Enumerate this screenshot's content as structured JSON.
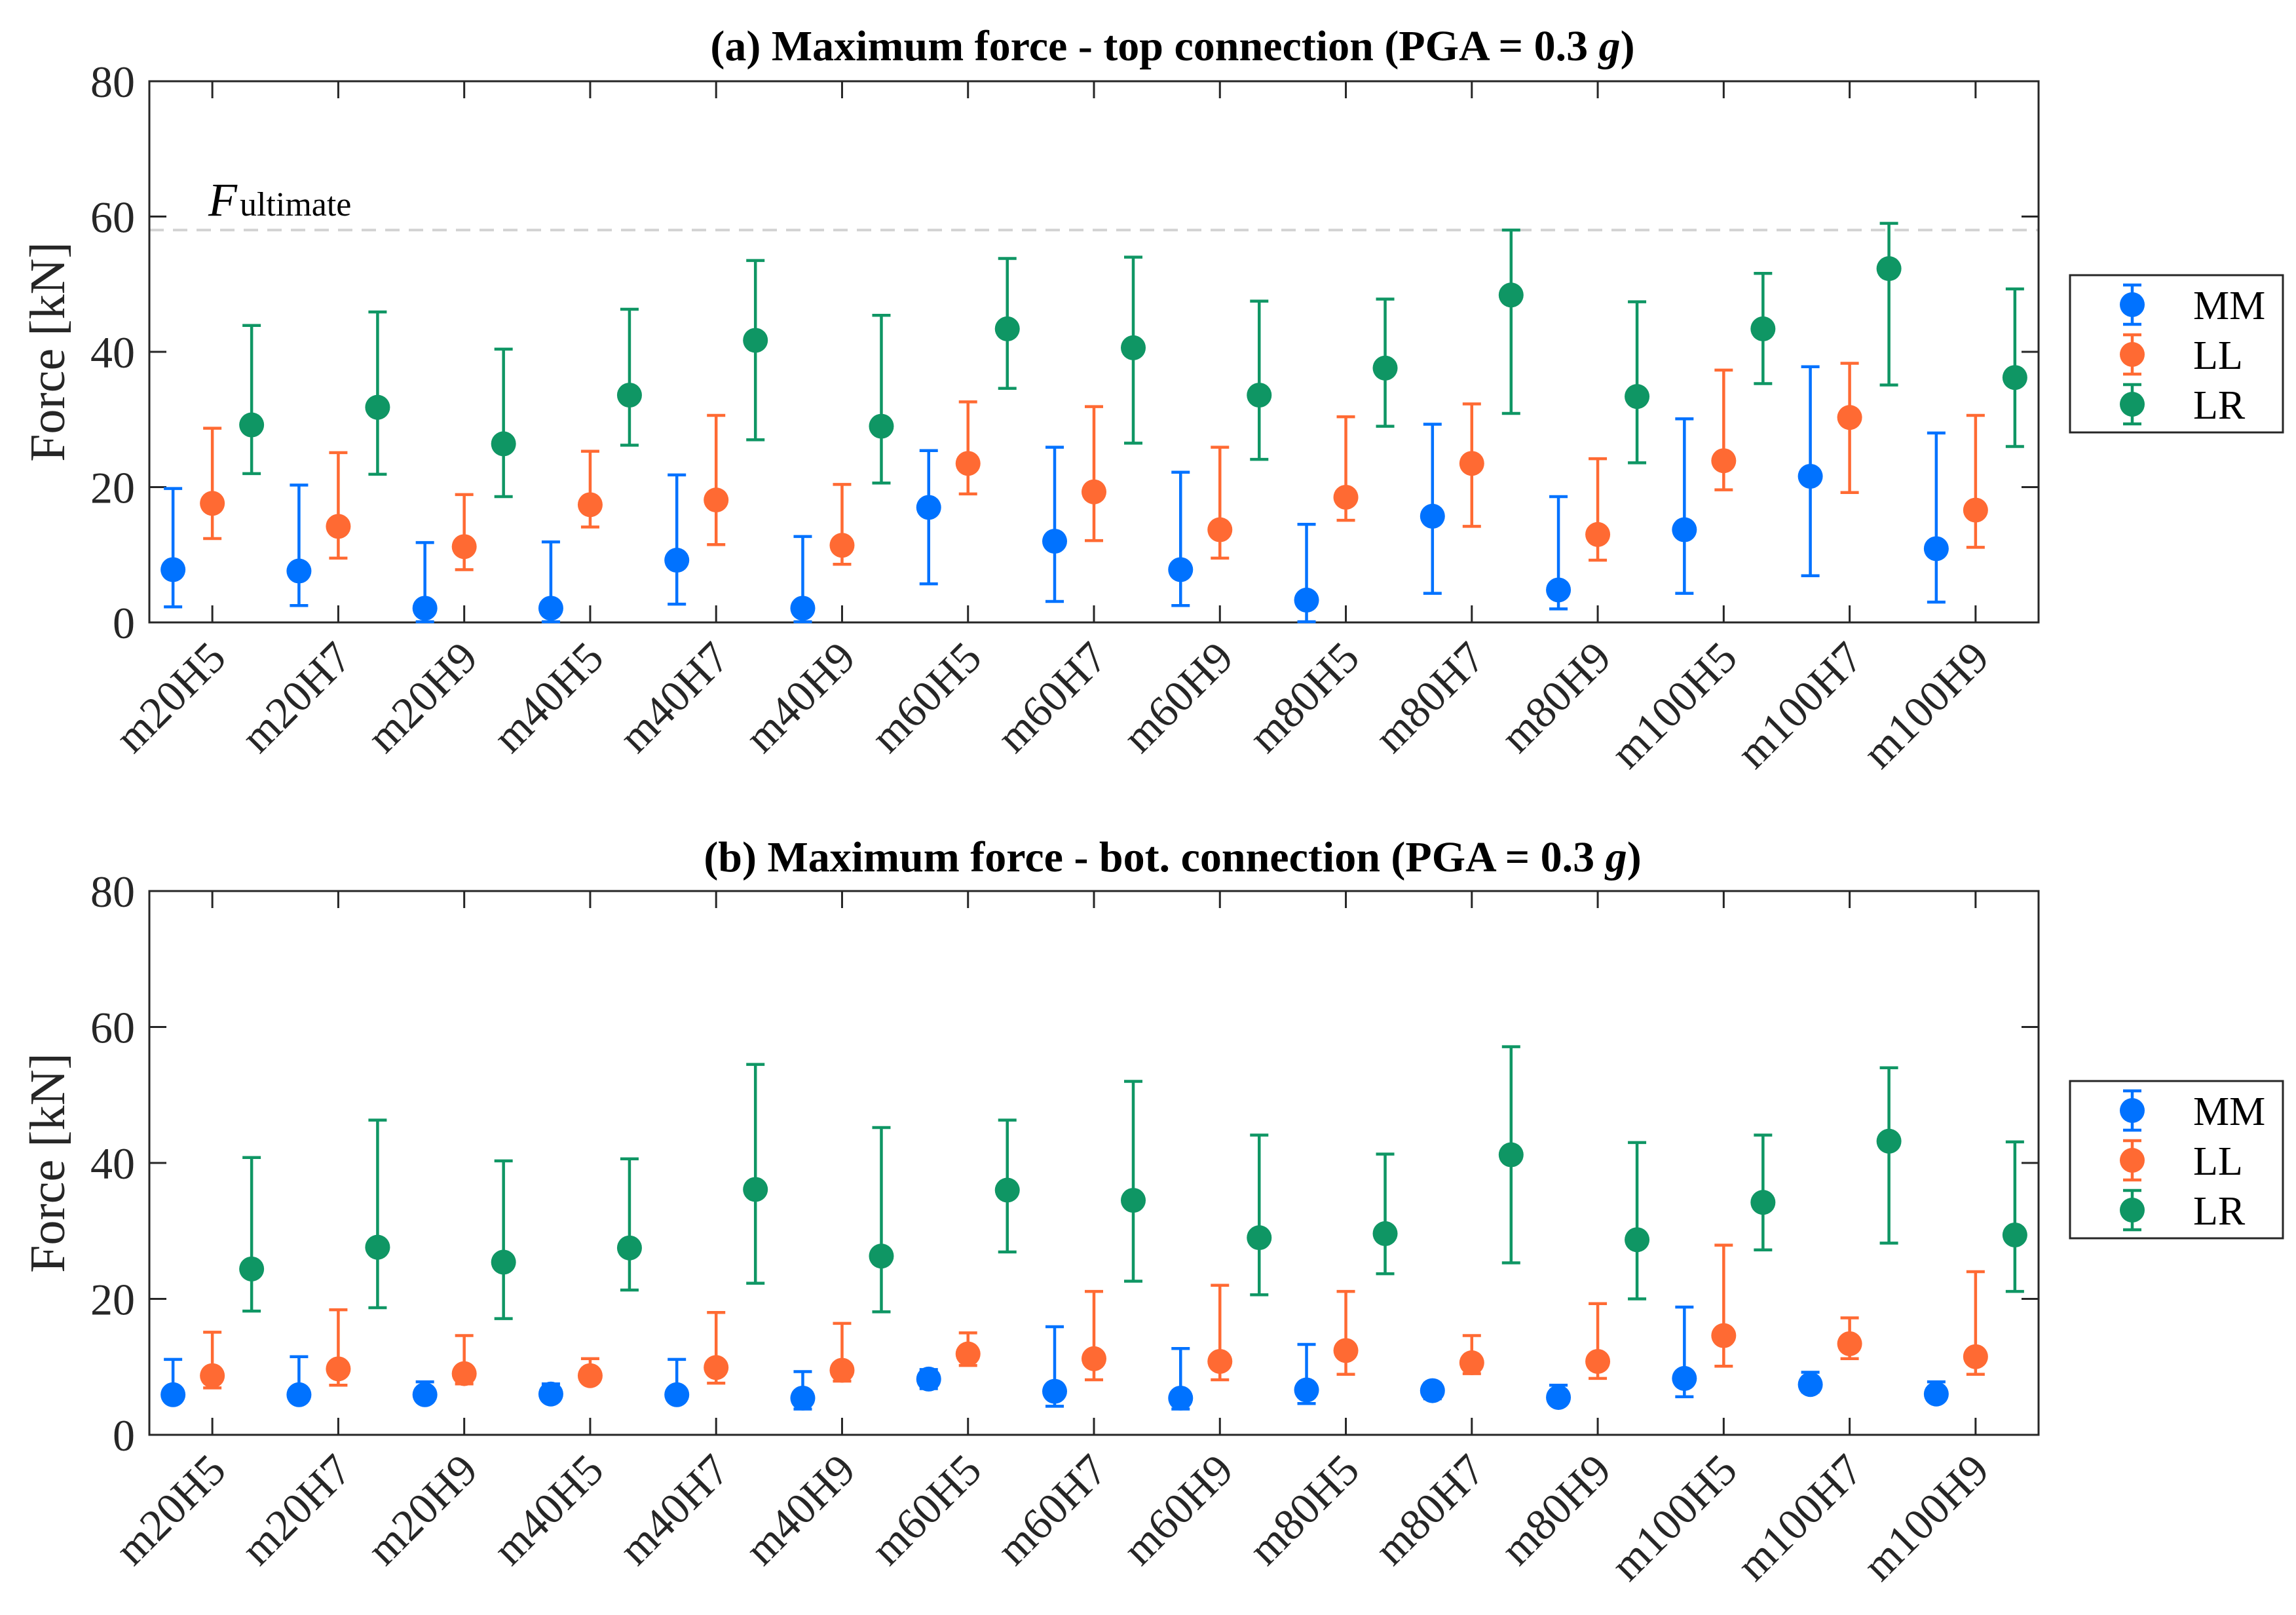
{
  "chart_data": [
    {
      "type": "scatter",
      "title_prefix": "(a) Maximum force - top connection (PGA = 0.3 ",
      "title_italic": "g",
      "title_suffix": ")",
      "ylabel": "Force [kN]",
      "ylim": [
        0,
        80
      ],
      "yticks": [
        0,
        20,
        40,
        60,
        80
      ],
      "grid": false,
      "legend_position": "outside-right",
      "reference_line": {
        "y": 58,
        "label_main": "F",
        "label_sub": "ultimate",
        "style": "dashed",
        "color": "#d3d3d3"
      },
      "categories": [
        "m20H5",
        "m20H7",
        "m20H9",
        "m40H5",
        "m40H7",
        "m40H9",
        "m60H5",
        "m60H7",
        "m60H9",
        "m80H5",
        "m80H7",
        "m80H9",
        "m100H5",
        "m100H7",
        "m100H9"
      ],
      "series": [
        {
          "name": "MM",
          "color": "#0072ff",
          "values": [
            7.8,
            7.6,
            2.1,
            2.1,
            9.2,
            2.1,
            17.0,
            12.0,
            7.8,
            3.3,
            15.7,
            4.8,
            13.7,
            21.6,
            10.9
          ],
          "lower": [
            2.3,
            2.5,
            0.1,
            0.1,
            2.7,
            0.1,
            5.7,
            3.1,
            2.5,
            0.1,
            4.3,
            2.0,
            4.3,
            6.9,
            3.0
          ],
          "upper": [
            19.8,
            20.3,
            11.8,
            11.9,
            21.8,
            12.7,
            25.4,
            25.9,
            22.2,
            14.5,
            29.3,
            18.6,
            30.1,
            37.8,
            28.0
          ]
        },
        {
          "name": "LL",
          "color": "#ff6a33",
          "values": [
            17.6,
            14.2,
            11.2,
            17.4,
            18.1,
            11.4,
            23.5,
            19.3,
            13.7,
            18.5,
            23.5,
            13.0,
            23.9,
            30.3,
            16.6
          ],
          "lower": [
            12.4,
            9.5,
            7.8,
            14.1,
            11.5,
            8.6,
            19.0,
            12.1,
            9.5,
            15.1,
            14.2,
            9.2,
            19.6,
            19.2,
            11.1
          ],
          "upper": [
            28.7,
            25.1,
            18.9,
            25.3,
            30.6,
            20.4,
            32.6,
            31.9,
            25.9,
            30.4,
            32.3,
            24.2,
            37.3,
            38.3,
            30.6
          ]
        },
        {
          "name": "LR",
          "color": "#0f9664",
          "values": [
            29.2,
            31.8,
            26.4,
            33.6,
            41.7,
            29.0,
            43.4,
            40.6,
            33.6,
            37.6,
            48.4,
            33.4,
            43.4,
            52.3,
            36.2
          ],
          "lower": [
            22.0,
            21.9,
            18.6,
            26.2,
            27.0,
            20.6,
            34.6,
            26.5,
            24.1,
            29.0,
            30.9,
            23.6,
            35.3,
            35.1,
            26.0
          ],
          "upper": [
            43.9,
            45.9,
            40.4,
            46.3,
            53.5,
            45.4,
            53.8,
            54.0,
            47.5,
            47.8,
            58.0,
            47.4,
            51.6,
            59.0,
            49.3
          ]
        }
      ]
    },
    {
      "type": "scatter",
      "title_prefix": "(b) Maximum force - bot. connection (PGA = 0.3 ",
      "title_italic": "g",
      "title_suffix": ")",
      "ylabel": "Force [kN]",
      "ylim": [
        0,
        80
      ],
      "yticks": [
        0,
        20,
        40,
        60,
        80
      ],
      "grid": false,
      "legend_position": "outside-right",
      "categories": [
        "m20H5",
        "m20H7",
        "m20H9",
        "m40H5",
        "m40H7",
        "m40H9",
        "m60H5",
        "m60H7",
        "m60H9",
        "m80H5",
        "m80H7",
        "m80H9",
        "m100H5",
        "m100H7",
        "m100H9"
      ],
      "series": [
        {
          "name": "MM",
          "color": "#0072ff",
          "values": [
            5.9,
            5.9,
            5.9,
            6.0,
            5.9,
            5.4,
            8.2,
            6.4,
            5.4,
            6.6,
            6.5,
            5.5,
            8.3,
            7.4,
            6.0
          ],
          "lower": [
            4.9,
            4.9,
            4.9,
            5.3,
            4.9,
            3.8,
            6.8,
            4.2,
            3.8,
            4.6,
            5.3,
            4.8,
            5.6,
            6.3,
            5.2
          ],
          "upper": [
            11.1,
            11.5,
            7.8,
            7.5,
            11.1,
            9.3,
            9.6,
            15.9,
            12.7,
            13.3,
            7.6,
            7.3,
            18.8,
            9.2,
            7.8
          ]
        },
        {
          "name": "LL",
          "color": "#ff6a33",
          "values": [
            8.7,
            9.7,
            9.0,
            8.7,
            9.9,
            9.5,
            11.9,
            11.2,
            10.8,
            12.4,
            10.6,
            10.8,
            14.6,
            13.4,
            11.5
          ],
          "lower": [
            6.9,
            7.3,
            7.5,
            7.9,
            7.6,
            7.9,
            10.2,
            8.1,
            8.1,
            8.9,
            9.0,
            8.3,
            10.1,
            11.2,
            8.9
          ],
          "upper": [
            15.1,
            18.4,
            14.6,
            11.2,
            18.0,
            16.4,
            15.0,
            21.1,
            22.0,
            21.1,
            14.6,
            19.3,
            27.9,
            17.2,
            24.0
          ]
        },
        {
          "name": "LR",
          "color": "#0f9664",
          "values": [
            24.4,
            27.6,
            25.4,
            27.5,
            36.1,
            26.3,
            36.0,
            34.5,
            29.0,
            29.6,
            41.2,
            28.7,
            34.2,
            43.2,
            29.4
          ],
          "lower": [
            18.2,
            18.7,
            17.1,
            21.3,
            22.3,
            18.1,
            26.9,
            22.6,
            20.6,
            23.7,
            25.3,
            20.0,
            27.2,
            28.2,
            21.1
          ],
          "upper": [
            40.8,
            46.3,
            40.3,
            40.6,
            54.5,
            45.2,
            46.3,
            52.0,
            44.1,
            41.3,
            57.1,
            43.0,
            44.1,
            54.0,
            43.1
          ]
        }
      ]
    }
  ]
}
